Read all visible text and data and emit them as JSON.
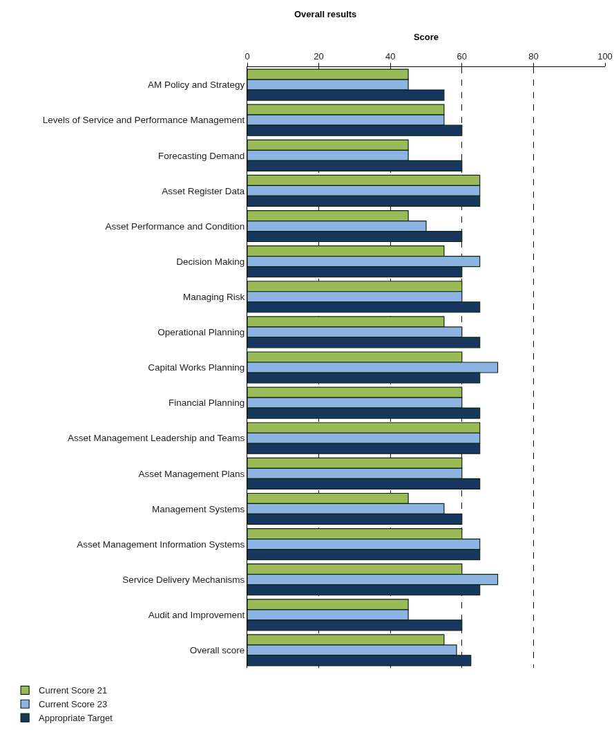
{
  "chart_data": {
    "type": "bar",
    "orientation": "horizontal",
    "title": "Overall results",
    "xlabel": "Score",
    "categories": [
      "AM Policy and Strategy",
      "Levels of Service and Performance Management",
      "Forecasting Demand",
      "Asset Register Data",
      "Asset Performance and Condition",
      "Decision Making",
      "Managing Risk",
      "Operational Planning",
      "Capital Works Planning",
      "Financial Planning",
      "Asset Management Leadership and Teams",
      "Asset Management Plans",
      "Management Systems",
      "Asset Management Information Systems",
      "Service Delivery Mechanisms",
      "Audit and Improvement",
      "Overall score"
    ],
    "series": [
      {
        "name": "Current Score 21",
        "color": "#9bbb59",
        "values": [
          45,
          55,
          45,
          65,
          45,
          55,
          60,
          55,
          60,
          60,
          65,
          60,
          45,
          60,
          60,
          45,
          55
        ]
      },
      {
        "name": "Current Score 23",
        "color": "#8db3e2",
        "values": [
          45,
          55,
          45,
          65,
          50,
          65,
          60,
          60,
          70,
          60,
          65,
          60,
          55,
          65,
          70,
          45,
          58.5
        ]
      },
      {
        "name": "Appropriate Target",
        "color": "#17375e",
        "values": [
          55,
          60,
          60,
          65,
          60,
          60,
          65,
          65,
          65,
          65,
          65,
          65,
          60,
          65,
          65,
          60,
          62.5
        ]
      }
    ],
    "xlim": [
      0,
      100
    ],
    "xticks": [
      0,
      20,
      40,
      60,
      80,
      100
    ],
    "grid": "x",
    "legend": "bottom left"
  }
}
